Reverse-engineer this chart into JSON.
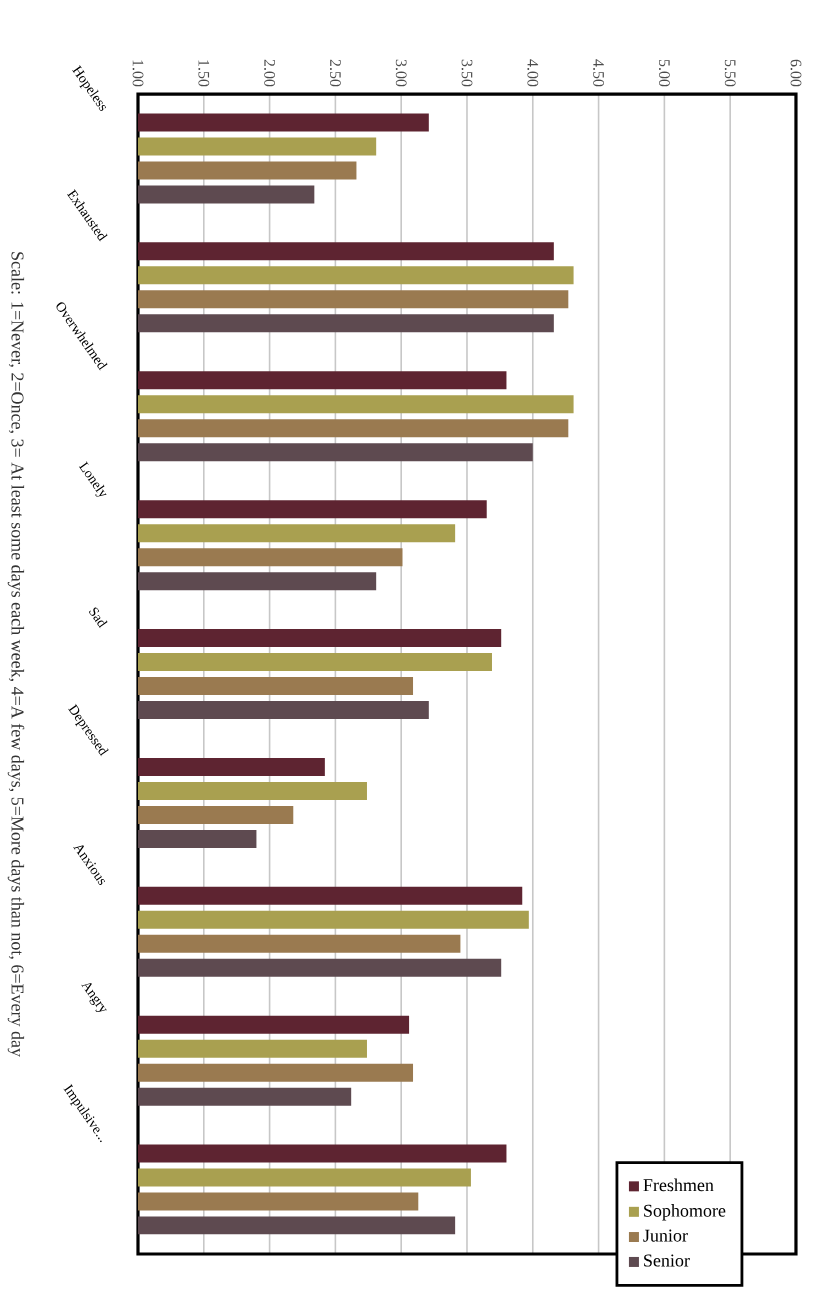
{
  "chart_data": {
    "type": "bar",
    "orientation": "horizontal",
    "categories": [
      "Hopeless",
      "Exhausted",
      "Overwhelmed",
      "Lonely",
      "Sad",
      "Depressed",
      "Anxious",
      "Angry",
      "Impulsive..."
    ],
    "series": [
      {
        "name": "Freshmen",
        "color": "#5e2431",
        "values": [
          3.21,
          4.16,
          3.8,
          3.65,
          3.76,
          2.42,
          3.92,
          3.06,
          3.8
        ]
      },
      {
        "name": "Sophomore",
        "color": "#a9a050",
        "values": [
          2.81,
          4.31,
          4.31,
          3.41,
          3.69,
          2.74,
          3.97,
          2.74,
          3.53
        ]
      },
      {
        "name": "Junior",
        "color": "#9a7a50",
        "values": [
          2.66,
          4.27,
          4.27,
          3.01,
          3.09,
          2.18,
          3.45,
          3.09,
          3.13
        ]
      },
      {
        "name": "Senior",
        "color": "#5e4a50",
        "values": [
          2.34,
          4.16,
          4.0,
          2.81,
          3.21,
          1.9,
          3.76,
          2.62,
          3.41
        ]
      }
    ],
    "xlim": [
      1,
      6
    ],
    "xticks": [
      {
        "value": 1,
        "label": "1.00"
      },
      {
        "value": 1.5,
        "label": "1.50"
      },
      {
        "value": 2,
        "label": "2.00"
      },
      {
        "value": 2.5,
        "label": "2.50"
      },
      {
        "value": 3,
        "label": "3.00"
      },
      {
        "value": 3.5,
        "label": "3.50"
      },
      {
        "value": 4,
        "label": "4.00"
      },
      {
        "value": 4.5,
        "label": "4.50"
      },
      {
        "value": 5,
        "label": "5.00"
      },
      {
        "value": 5.5,
        "label": "5.50"
      },
      {
        "value": 6,
        "label": "6.00"
      }
    ],
    "grid": "x",
    "legend": "bottom right",
    "annotations": [
      "Scale: 1=Never, 2=Once, 3= At least some days each week, 4=A few days, 5=More days than not, 6=Every day"
    ]
  }
}
